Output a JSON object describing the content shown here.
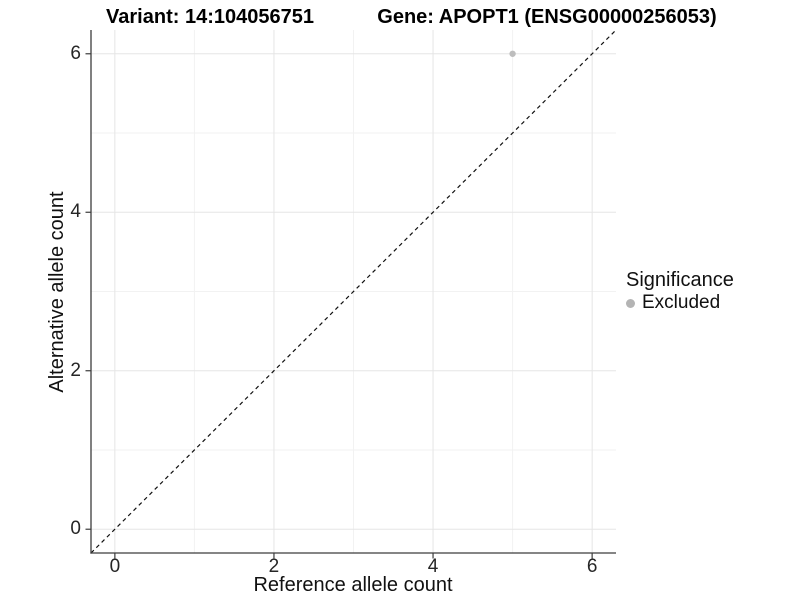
{
  "titles": {
    "variant": "Variant: 14:104056751",
    "gene": "Gene: APOPT1 (ENSG00000256053)"
  },
  "axes": {
    "x_label": "Reference allele count",
    "y_label": "Alternative allele count"
  },
  "legend": {
    "title": "Significance",
    "entries": [
      {
        "label": "Excluded",
        "color": "#b4b4b4"
      }
    ]
  },
  "chart_data": {
    "type": "scatter",
    "title": "Variant: 14:104056751   Gene: APOPT1 (ENSG00000256053)",
    "xlabel": "Reference allele count",
    "ylabel": "Alternative allele count",
    "xlim": [
      -0.3,
      6.3
    ],
    "ylim": [
      -0.3,
      6.3
    ],
    "xticks": [
      0,
      2,
      4,
      6
    ],
    "yticks": [
      0,
      2,
      4,
      6
    ],
    "minor_xticks": [
      1,
      3,
      5
    ],
    "minor_yticks": [
      1,
      3,
      5
    ],
    "grid": "on",
    "legend_position": "right",
    "series": [
      {
        "name": "Excluded",
        "color": "#bdbdbd",
        "points": [
          {
            "x": 5,
            "y": 6
          }
        ]
      }
    ],
    "reference_line": {
      "type": "identity",
      "equation": "y = x",
      "style": "dashed",
      "color": "#111111"
    },
    "colors": {
      "grid_major": "#e5e5e5",
      "grid_minor": "#f2f2f2",
      "axis_line": "#3c3c3c",
      "point": "#bdbdbd",
      "background": "#ffffff"
    }
  }
}
